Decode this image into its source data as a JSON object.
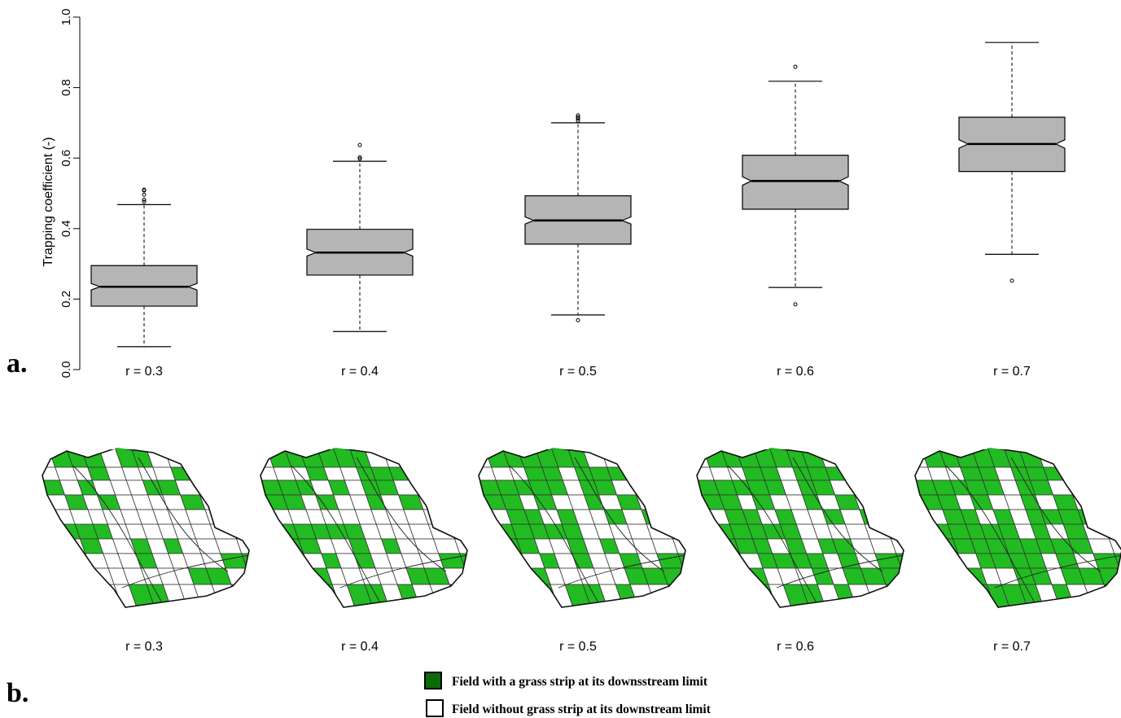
{
  "panel_a": {
    "letter": "a."
  },
  "panel_b": {
    "letter": "b.",
    "map_labels": [
      "r = 0.3",
      "r = 0.4",
      "r = 0.5",
      "r = 0.6",
      "r = 0.7"
    ],
    "green_fraction": [
      0.3,
      0.4,
      0.5,
      0.6,
      0.7
    ]
  },
  "legend": {
    "items": [
      {
        "label": "Field with a grass strip at its downsstream limit",
        "color": "#0b6b0b"
      },
      {
        "label": "Field without grass strip at its downstream limit",
        "color": "#ffffff"
      }
    ]
  },
  "colors": {
    "box_fill": "#b5b5b5",
    "field_green": "#22bb22",
    "stroke": "#000000"
  },
  "chart_data": {
    "type": "boxplot",
    "notched": true,
    "ylabel": "Trapping coefficient (-)",
    "ylim": [
      0,
      1.0
    ],
    "yticks": [
      "0.0",
      "0.2",
      "0.4",
      "0.6",
      "0.8",
      "1.0"
    ],
    "categories": [
      "r = 0.3",
      "r = 0.4",
      "r = 0.5",
      "r = 0.6",
      "r = 0.7"
    ],
    "boxes": [
      {
        "whisker_low": 0.065,
        "q1": 0.18,
        "median": 0.235,
        "q3": 0.295,
        "whisker_high": 0.468,
        "notch_low": 0.226,
        "notch_high": 0.244,
        "outliers": [
          0.476,
          0.482,
          0.496,
          0.508,
          0.51
        ]
      },
      {
        "whisker_low": 0.108,
        "q1": 0.268,
        "median": 0.332,
        "q3": 0.398,
        "whisker_high": 0.591,
        "notch_low": 0.322,
        "notch_high": 0.342,
        "outliers": [
          0.598,
          0.602,
          0.637
        ]
      },
      {
        "whisker_low": 0.155,
        "q1": 0.356,
        "median": 0.423,
        "q3": 0.493,
        "whisker_high": 0.7,
        "notch_low": 0.413,
        "notch_high": 0.433,
        "outliers": [
          0.14,
          0.706,
          0.712,
          0.716,
          0.721
        ]
      },
      {
        "whisker_low": 0.233,
        "q1": 0.455,
        "median": 0.535,
        "q3": 0.608,
        "whisker_high": 0.818,
        "notch_low": 0.523,
        "notch_high": 0.547,
        "outliers": [
          0.185,
          0.859
        ]
      },
      {
        "whisker_low": 0.327,
        "q1": 0.562,
        "median": 0.64,
        "q3": 0.716,
        "whisker_high": 0.928,
        "notch_low": 0.628,
        "notch_high": 0.652,
        "outliers": [
          0.252
        ]
      }
    ]
  }
}
